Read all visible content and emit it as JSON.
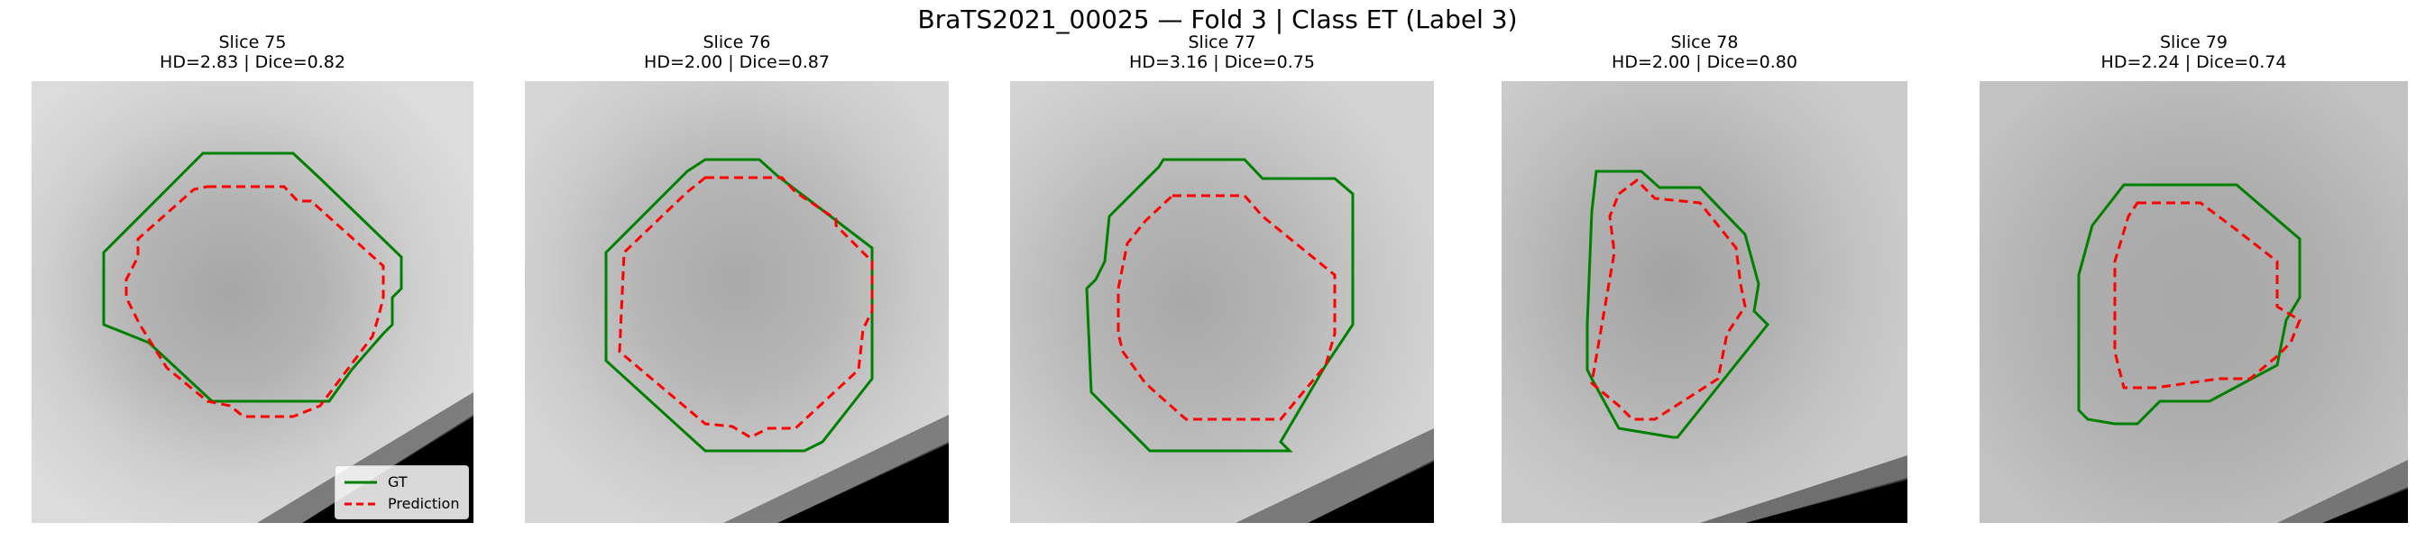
{
  "figure": {
    "title": "BraTS2021_00025 — Fold 3 | Class ET (Label 3)"
  },
  "colors": {
    "gt": "#008000",
    "prediction": "#ff0000"
  },
  "legend": {
    "items": [
      {
        "label": "GT",
        "style": "solid"
      },
      {
        "label": "Prediction",
        "style": "dashed"
      }
    ]
  },
  "panels": [
    {
      "title": "Slice 75",
      "metrics": "HD=2.83 | Dice=0.82"
    },
    {
      "title": "Slice 76",
      "metrics": "HD=2.00 | Dice=0.87"
    },
    {
      "title": "Slice 77",
      "metrics": "HD=3.16 | Dice=0.75"
    },
    {
      "title": "Slice 78",
      "metrics": "HD=2.00 | Dice=0.80"
    },
    {
      "title": "Slice 79",
      "metrics": "HD=2.24 | Dice=0.74"
    }
  ]
}
